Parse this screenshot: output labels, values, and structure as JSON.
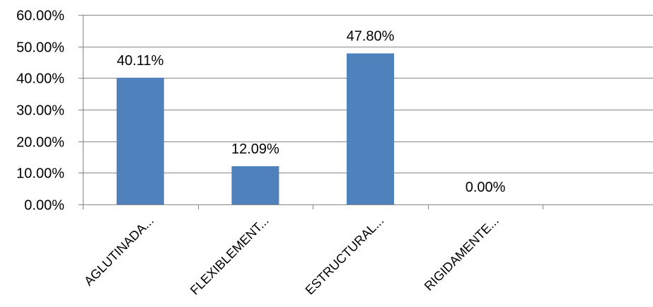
{
  "chart_data": {
    "type": "bar",
    "categories": [
      "AGLUTINADA...",
      "FLEXIBLEMENT...",
      "ESTRUCTURAL...",
      "RIGIDAMENTE..."
    ],
    "values": [
      40.11,
      12.09,
      47.8,
      0.0
    ],
    "data_labels": [
      "40.11%",
      "12.09%",
      "47.80%",
      "0.00%"
    ],
    "ylim": [
      0,
      60
    ],
    "y_ticks": [
      0,
      10,
      20,
      30,
      40,
      50,
      60
    ],
    "y_tick_labels": [
      "0.00%",
      "10.00%",
      "20.00%",
      "30.00%",
      "40.00%",
      "50.00%",
      "60.00%"
    ],
    "slots": 5,
    "grid": true,
    "legend": "none",
    "title": "",
    "xlabel": "",
    "ylabel": "",
    "bar_color": "#4F81BD",
    "grid_color": "#868686"
  }
}
